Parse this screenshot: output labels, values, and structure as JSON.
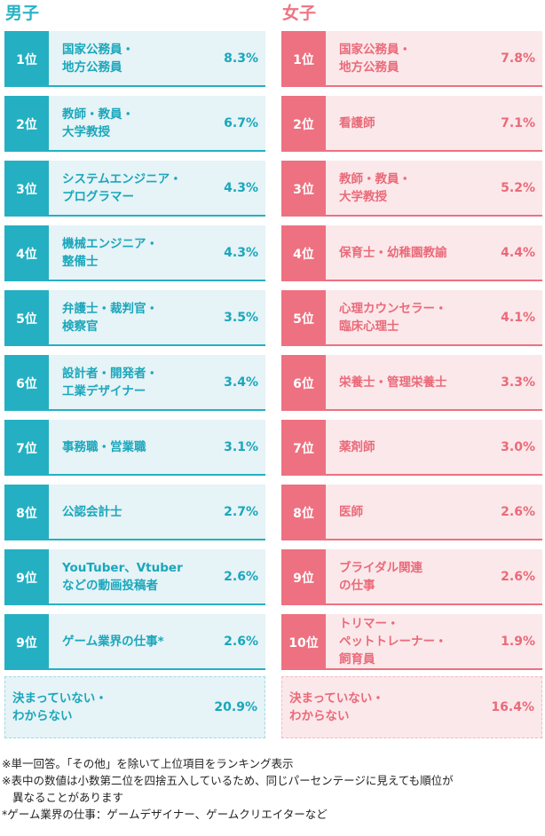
{
  "headings": {
    "boys": "男子",
    "girls": "女子"
  },
  "boys": {
    "rows": [
      {
        "rank": "1位",
        "name": "国家公務員・\n地方公務員",
        "pct": "8.3%"
      },
      {
        "rank": "2位",
        "name": "教師・教員・\n大学教授",
        "pct": "6.7%"
      },
      {
        "rank": "3位",
        "name": "システムエンジニア・\nプログラマー",
        "pct": "4.3%"
      },
      {
        "rank": "4位",
        "name": "機械エンジニア・\n整備士",
        "pct": "4.3%"
      },
      {
        "rank": "5位",
        "name": "弁護士・裁判官・\n検察官",
        "pct": "3.5%"
      },
      {
        "rank": "6位",
        "name": "設計者・開発者・\n工業デザイナー",
        "pct": "3.4%"
      },
      {
        "rank": "7位",
        "name": "事務職・営業職",
        "pct": "3.1%"
      },
      {
        "rank": "8位",
        "name": "公認会計士",
        "pct": "2.7%"
      },
      {
        "rank": "9位",
        "name": "YouTuber、Vtuber\nなどの動画投稿者",
        "pct": "2.6%"
      },
      {
        "rank": "9位",
        "name": "ゲーム業界の仕事*",
        "pct": "2.6%"
      }
    ],
    "undecided": {
      "label": "決まっていない・\nわからない",
      "pct": "20.9%"
    }
  },
  "girls": {
    "rows": [
      {
        "rank": "1位",
        "name": "国家公務員・\n地方公務員",
        "pct": "7.8%"
      },
      {
        "rank": "2位",
        "name": "看護師",
        "pct": "7.1%"
      },
      {
        "rank": "3位",
        "name": "教師・教員・\n大学教授",
        "pct": "5.2%"
      },
      {
        "rank": "4位",
        "name": "保育士・幼稚園教諭",
        "pct": "4.4%"
      },
      {
        "rank": "5位",
        "name": "心理カウンセラー・\n臨床心理士",
        "pct": "4.1%"
      },
      {
        "rank": "6位",
        "name": "栄養士・管理栄養士",
        "pct": "3.3%"
      },
      {
        "rank": "7位",
        "name": "薬剤師",
        "pct": "3.0%"
      },
      {
        "rank": "8位",
        "name": "医師",
        "pct": "2.6%"
      },
      {
        "rank": "9位",
        "name": "ブライダル関連\nの仕事",
        "pct": "2.6%"
      },
      {
        "rank": "10位",
        "name": "トリマー・\nペットトレーナー・\n飼育員",
        "pct": "1.9%"
      }
    ],
    "undecided": {
      "label": "決まっていない・\nわからない",
      "pct": "16.4%"
    }
  },
  "notes": [
    "※単一回答。「その他」を除いて上位項目をランキング表示",
    "※表中の数値は小数第二位を四捨五入しているため、同じパーセンテージに見えても順位が",
    "異なることがあります",
    "*ゲーム業界の仕事：ゲームデザイナー、ゲームクリエイターなど"
  ],
  "colors": {
    "boys_accent": "#24b0c2",
    "boys_background": "#e6f3f7",
    "girls_accent": "#ed7180",
    "girls_background": "#fbe8ea"
  }
}
